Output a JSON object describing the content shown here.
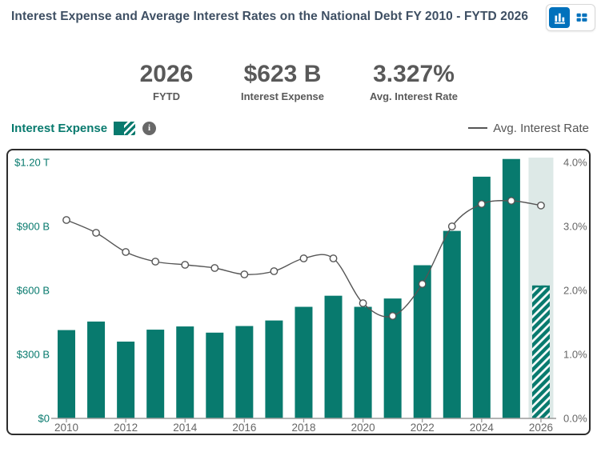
{
  "header": {
    "title": "Interest Expense and Average Interest Rates on the National Debt FY 2010 - FYTD 2026",
    "view_toggle": {
      "active": "chart",
      "chart_button_icon": "bar-chart-icon",
      "table_button_icon": "table-icon"
    }
  },
  "stats": [
    {
      "value": "2026",
      "label": "FYTD"
    },
    {
      "value": "$623 B",
      "label": "Interest Expense"
    },
    {
      "value": "3.327%",
      "label": "Avg. Interest Rate"
    }
  ],
  "legend": {
    "expense_label": "Interest Expense",
    "rate_label": "Avg. Interest Rate",
    "info_icon": "info-icon"
  },
  "colors": {
    "teal": "#087a6e",
    "band": "#dde9e7",
    "hatch_gap": "#f6faf9",
    "line": "#555555",
    "marker_fill": "#ffffff",
    "accent_blue": "#0071bc",
    "axis_text_gray": "#666666",
    "left_axis_text": "#087a6e",
    "axis_line": "#9b9b9b",
    "stats_gray": "#595959",
    "title_navy": "#3e4f63"
  },
  "chart_data": {
    "type": "bar+line",
    "title": "Interest Expense and Average Interest Rates on the National Debt FY 2010 - FYTD 2026",
    "categories": [
      2010,
      2011,
      2012,
      2013,
      2014,
      2015,
      2016,
      2017,
      2018,
      2019,
      2020,
      2021,
      2022,
      2023,
      2024,
      2025,
      2026
    ],
    "series": [
      {
        "name": "Interest Expense",
        "type": "bar",
        "unit": "$B",
        "values": [
          414,
          454,
          360,
          416,
          431,
          402,
          433,
          459,
          523,
          575,
          523,
          562,
          718,
          879,
          1133,
          1216,
          623
        ]
      },
      {
        "name": "Avg. Interest Rate",
        "type": "line",
        "unit": "%",
        "values": [
          3.1,
          2.9,
          2.6,
          2.45,
          2.4,
          2.35,
          2.25,
          2.3,
          2.5,
          2.5,
          1.8,
          1.6,
          2.1,
          3.0,
          3.35,
          3.4,
          3.327
        ]
      }
    ],
    "fytd_index": 16,
    "fytd_year": 2026,
    "left_axis": {
      "ticks": [
        "$0",
        "$300 B",
        "$600 B",
        "$900 B",
        "$1.20 T"
      ],
      "range_billions": [
        0,
        1200
      ]
    },
    "right_axis": {
      "ticks": [
        "0.0%",
        "1.0%",
        "2.0%",
        "3.0%",
        "4.0%"
      ],
      "range_percent": [
        0,
        4
      ]
    },
    "x_tick_years": [
      2010,
      2012,
      2014,
      2016,
      2018,
      2020,
      2022,
      2024,
      2026
    ],
    "grid": false,
    "legend_position": "top"
  }
}
